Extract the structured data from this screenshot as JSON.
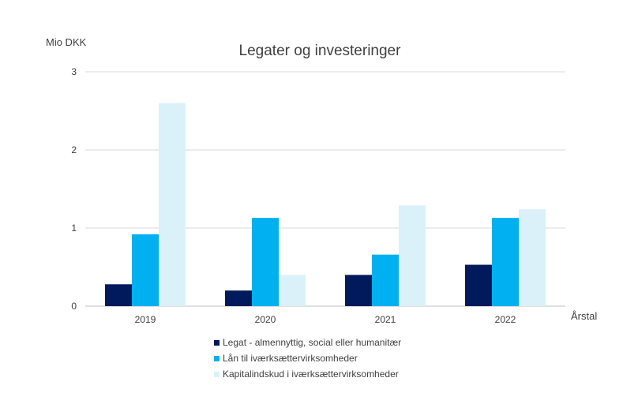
{
  "chart_data": {
    "type": "bar",
    "title": "Legater og investeringer",
    "ylabel": "Mio DKK",
    "xlabel": "Årstal",
    "categories": [
      "2019",
      "2020",
      "2021",
      "2022"
    ],
    "ylim": [
      0,
      3
    ],
    "yticks": [
      "0",
      "1",
      "2",
      "3"
    ],
    "grid": true,
    "legend_position": "bottom",
    "series": [
      {
        "name": "Legat - almennyttig, social eller humanitær",
        "color": "#001a5c",
        "values": [
          0.28,
          0.2,
          0.4,
          0.53
        ]
      },
      {
        "name": "Lån til iværksættervirksomheder",
        "color": "#00b0f0",
        "values": [
          0.92,
          1.13,
          0.66,
          1.13
        ]
      },
      {
        "name": "Kapitalindskud i iværksættervirksomheder",
        "color": "#dbf1fa",
        "values": [
          2.6,
          0.4,
          1.29,
          1.24
        ]
      }
    ]
  }
}
